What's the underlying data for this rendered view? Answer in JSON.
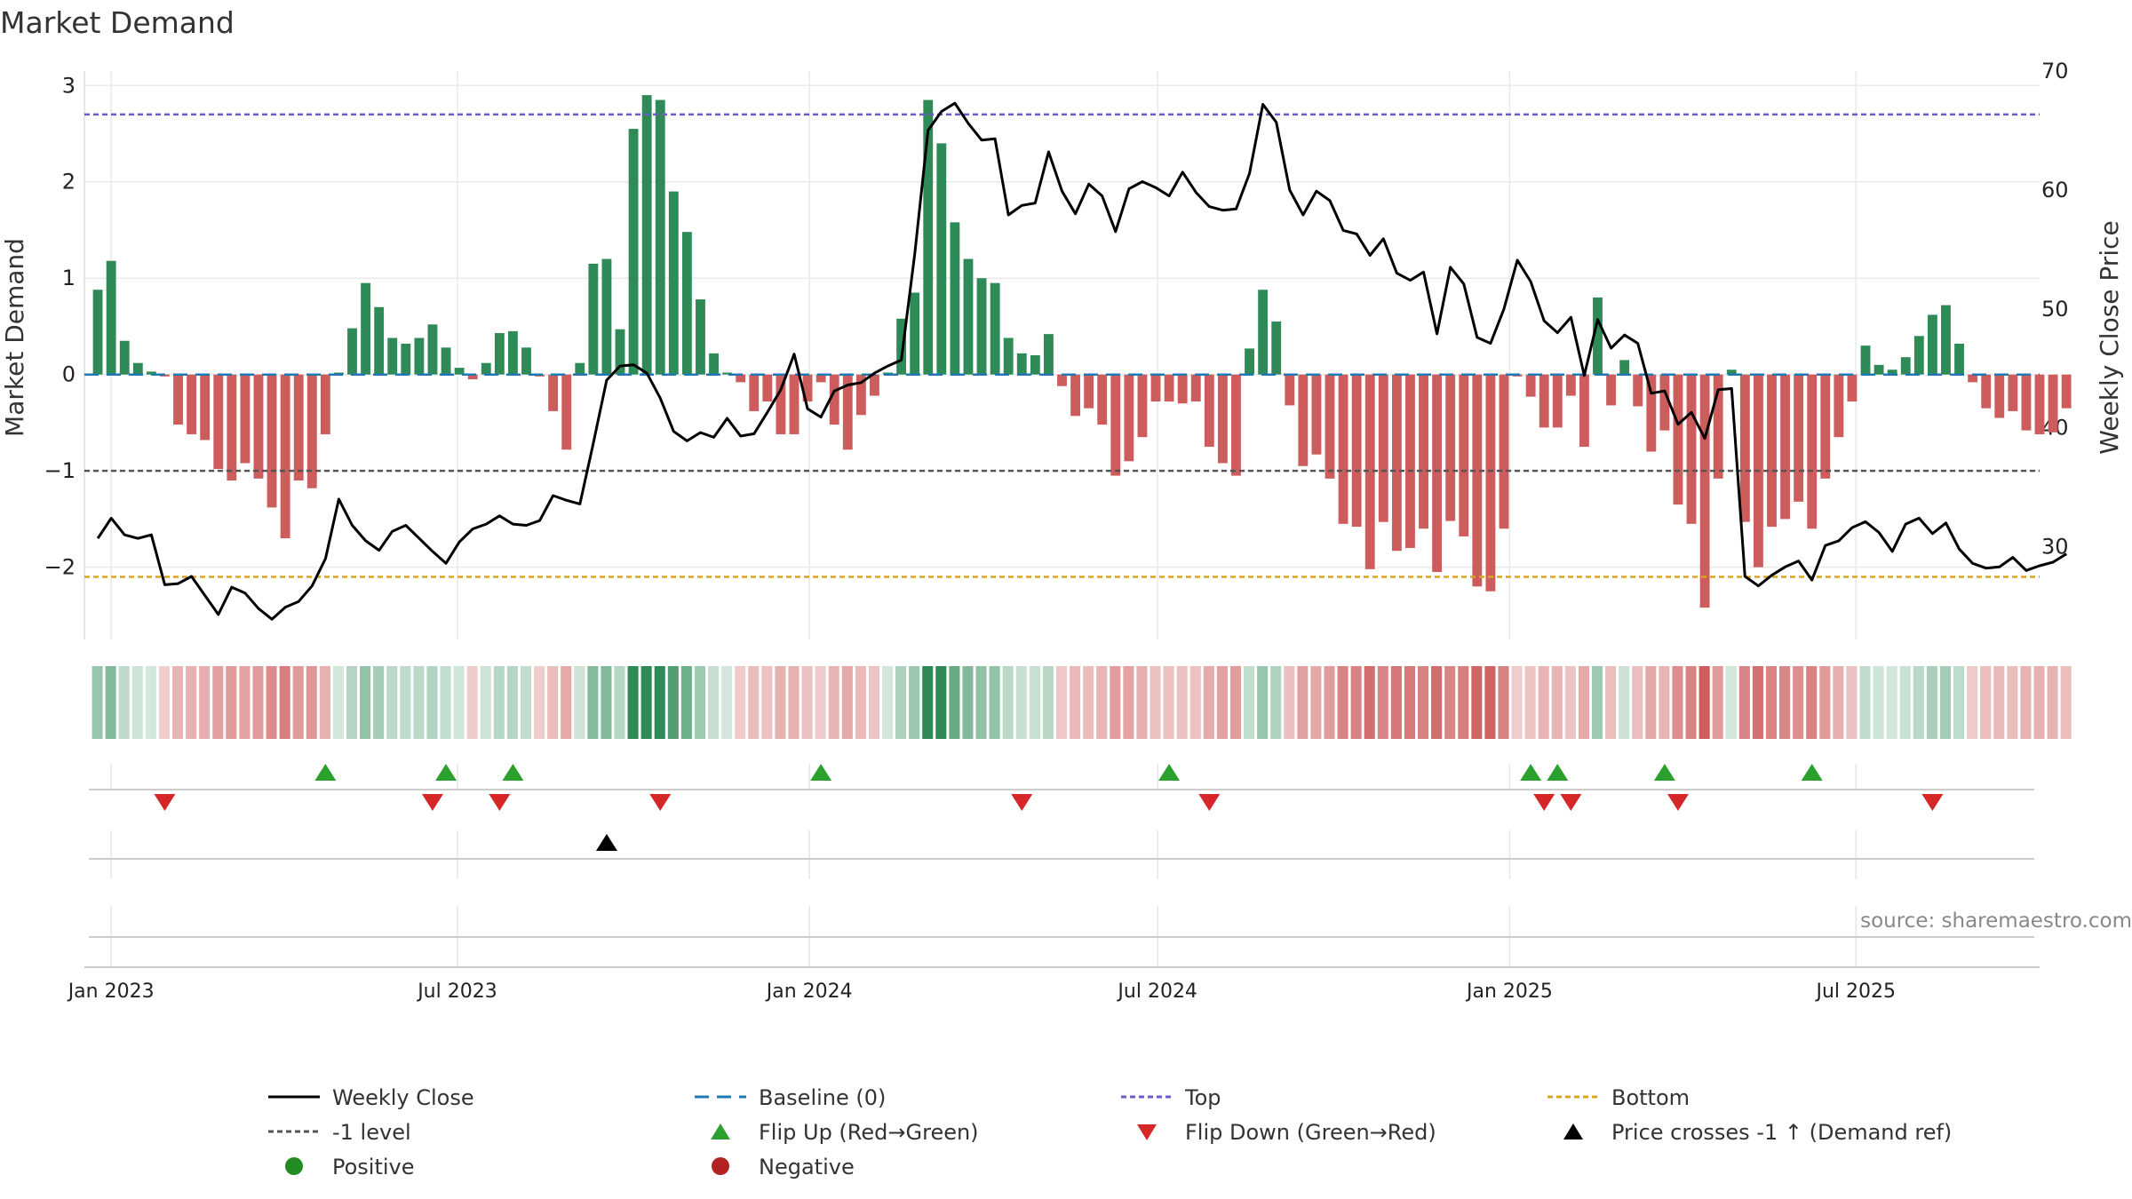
{
  "title": "Market Demand",
  "source": "source: sharemaestro.com",
  "colors": {
    "bar_positive": "#2e8b57",
    "bar_negative": "#cd5c5c",
    "price_line": "#000000",
    "baseline": "#1f77b4",
    "top": "#6a5acd",
    "bottom": "#daa520",
    "minus_one": "#555555",
    "flip_up": "#2ca02c",
    "flip_down": "#d62728",
    "cross": "#000000",
    "positive_dot": "#228b22",
    "negative_dot": "#b22222"
  },
  "legend": [
    {
      "key": "weekly_close",
      "label": "Weekly Close"
    },
    {
      "key": "baseline",
      "label": "Baseline (0)"
    },
    {
      "key": "top",
      "label": "Top"
    },
    {
      "key": "bottom",
      "label": "Bottom"
    },
    {
      "key": "minus_one",
      "label": "-1 level"
    },
    {
      "key": "flip_up",
      "label": "Flip Up (Red→Green)"
    },
    {
      "key": "flip_down",
      "label": "Flip Down (Green→Red)"
    },
    {
      "key": "cross",
      "label": "Price crosses -1 ↑ (Demand ref)"
    },
    {
      "key": "positive",
      "label": "Positive"
    },
    {
      "key": "negative",
      "label": "Negative"
    }
  ],
  "chart_data": {
    "type": "bar",
    "title": "Market Demand",
    "ylabel": "Market Demand",
    "y2label": "Weekly Close Price",
    "ylim": [
      -2.75,
      3.15
    ],
    "y2lim": [
      22.2,
      70.0
    ],
    "yticks": [
      3,
      2,
      1,
      0,
      -1,
      -2
    ],
    "ytick_labels": [
      "3",
      "2",
      "1",
      "0",
      "−1",
      "−2"
    ],
    "y2ticks": [
      70,
      60,
      50,
      40,
      30
    ],
    "reference_levels": {
      "top": 2.7,
      "minus_one": -1.0,
      "bottom": -2.1,
      "baseline": 0
    },
    "x_start": "2022-12-18",
    "x_end": "2025-10-05",
    "week_start": "2022-12-25",
    "x_ticks": [
      {
        "date": "2023-01-01",
        "label": "Jan 2023"
      },
      {
        "date": "2023-07-01",
        "label": "Jul 2023"
      },
      {
        "date": "2024-01-01",
        "label": "Jan 2024"
      },
      {
        "date": "2024-07-01",
        "label": "Jul 2024"
      },
      {
        "date": "2025-01-01",
        "label": "Jan 2025"
      },
      {
        "date": "2025-07-01",
        "label": "Jul 2025"
      }
    ],
    "demand": [
      0.88,
      1.18,
      0.35,
      0.12,
      0.03,
      -0.02,
      -0.52,
      -0.62,
      -0.68,
      -0.98,
      -1.1,
      -0.92,
      -1.08,
      -1.38,
      -1.7,
      -1.1,
      -1.18,
      -0.62,
      0.02,
      0.48,
      0.95,
      0.7,
      0.38,
      0.32,
      0.38,
      0.52,
      0.28,
      0.07,
      -0.05,
      0.12,
      0.43,
      0.45,
      0.28,
      -0.02,
      -0.38,
      -0.78,
      0.12,
      1.15,
      1.2,
      0.47,
      2.55,
      2.9,
      2.85,
      1.9,
      1.48,
      0.78,
      0.22,
      0.02,
      -0.08,
      -0.38,
      -0.28,
      -0.62,
      -0.62,
      -0.28,
      -0.08,
      -0.52,
      -0.78,
      -0.42,
      -0.22,
      0.02,
      0.58,
      0.85,
      2.85,
      2.4,
      1.58,
      1.2,
      1.0,
      0.95,
      0.38,
      0.22,
      0.2,
      0.42,
      -0.12,
      -0.43,
      -0.35,
      -0.52,
      -1.05,
      -0.9,
      -0.65,
      -0.28,
      -0.28,
      -0.3,
      -0.28,
      -0.75,
      -0.92,
      -1.05,
      0.27,
      0.88,
      0.55,
      -0.32,
      -0.95,
      -0.83,
      -1.08,
      -1.55,
      -1.58,
      -2.02,
      -1.53,
      -1.83,
      -1.8,
      -1.6,
      -2.05,
      -1.52,
      -1.68,
      -2.2,
      -2.25,
      -1.6,
      -0.02,
      -0.23,
      -0.55,
      -0.55,
      -0.22,
      -0.75,
      0.8,
      -0.32,
      0.15,
      -0.33,
      -0.8,
      -0.58,
      -1.35,
      -1.55,
      -2.42,
      -1.08,
      0.05,
      -1.53,
      -2.0,
      -1.58,
      -1.5,
      -1.32,
      -1.6,
      -1.08,
      -0.65,
      -0.28,
      0.3,
      0.1,
      0.05,
      0.18,
      0.4,
      0.62,
      0.72,
      0.32,
      -0.08,
      -0.35,
      -0.45,
      -0.38,
      -0.58,
      -0.62,
      -0.6,
      -0.35
    ],
    "price": [
      30.7,
      32.4,
      31.0,
      30.7,
      31.0,
      26.8,
      26.9,
      27.5,
      25.9,
      24.3,
      26.6,
      26.1,
      24.8,
      23.9,
      24.9,
      25.4,
      26.7,
      29.0,
      34.0,
      31.8,
      30.5,
      29.7,
      31.3,
      31.8,
      30.7,
      29.6,
      28.6,
      30.4,
      31.5,
      31.9,
      32.6,
      31.9,
      31.8,
      32.2,
      34.3,
      33.9,
      33.6,
      38.7,
      44.0,
      45.2,
      45.3,
      44.6,
      42.5,
      39.7,
      38.9,
      39.6,
      39.2,
      40.8,
      39.3,
      39.5,
      41.3,
      43.2,
      46.2,
      41.6,
      40.9,
      43.1,
      43.6,
      43.8,
      44.6,
      45.2,
      45.7,
      54.6,
      65.0,
      66.6,
      67.3,
      65.6,
      64.2,
      64.3,
      57.9,
      58.7,
      58.9,
      63.2,
      59.9,
      58.0,
      60.5,
      59.5,
      56.5,
      60.1,
      60.7,
      60.2,
      59.5,
      61.5,
      59.8,
      58.6,
      58.3,
      58.4,
      61.4,
      67.2,
      65.7,
      60.0,
      57.9,
      59.9,
      59.1,
      56.6,
      56.3,
      54.5,
      55.9,
      53.0,
      52.4,
      53.1,
      47.9,
      53.5,
      52.1,
      47.6,
      47.1,
      50.0,
      54.1,
      52.3,
      49.0,
      48.0,
      49.3,
      44.4,
      49.1,
      46.7,
      47.8,
      47.1,
      42.9,
      43.1,
      40.3,
      41.3,
      39.1,
      43.2,
      43.3,
      27.5,
      26.7,
      27.6,
      28.3,
      28.8,
      27.2,
      30.1,
      30.5,
      31.6,
      32.1,
      31.2,
      29.6,
      31.9,
      32.4,
      31.1,
      32.0,
      29.8,
      28.6,
      28.2,
      28.3,
      29.1,
      28.0,
      28.4,
      28.7,
      29.4
    ],
    "flip_up_dates": [
      "2023-04-23",
      "2023-06-25",
      "2023-07-30",
      "2024-01-07",
      "2024-07-07",
      "2025-01-12",
      "2025-01-26",
      "2025-03-23",
      "2025-06-08"
    ],
    "flip_down_dates": [
      "2023-01-29",
      "2023-06-18",
      "2023-07-23",
      "2023-10-15",
      "2024-04-21",
      "2024-07-28",
      "2025-01-19",
      "2025-02-02",
      "2025-03-30",
      "2025-08-10"
    ],
    "price_cross_dates": [
      "2023-09-17"
    ]
  }
}
